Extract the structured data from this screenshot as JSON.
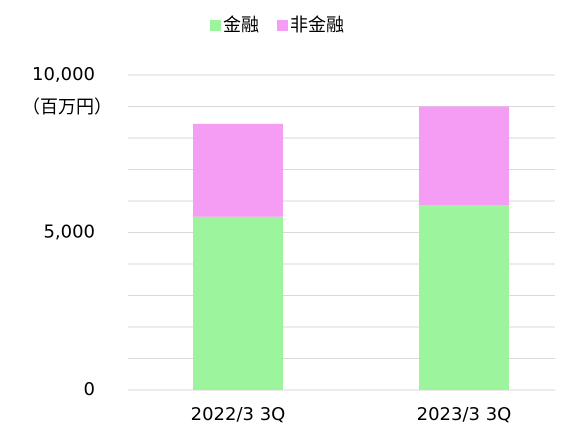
{
  "chart_data": {
    "type": "stacked_bar",
    "unit_label": "（百万円）",
    "categories": [
      "2022/3 3Q",
      "2023/3 3Q"
    ],
    "series": [
      {
        "name": "金融",
        "color": "#9cf59c",
        "values": [
          5500,
          5870
        ]
      },
      {
        "name": "非金融",
        "color": "#f59df5",
        "values": [
          2950,
          3130
        ]
      }
    ],
    "ylim": [
      0,
      10000
    ],
    "yticks": [
      {
        "value": 0,
        "label": "0"
      },
      {
        "value": 5000,
        "label": "5,000"
      },
      {
        "value": 10000,
        "label": "10,000"
      }
    ],
    "minor_yticks": [
      1000,
      2000,
      3000,
      4000,
      6000,
      7000,
      8000,
      9000
    ],
    "grid": true,
    "legend": "top"
  }
}
